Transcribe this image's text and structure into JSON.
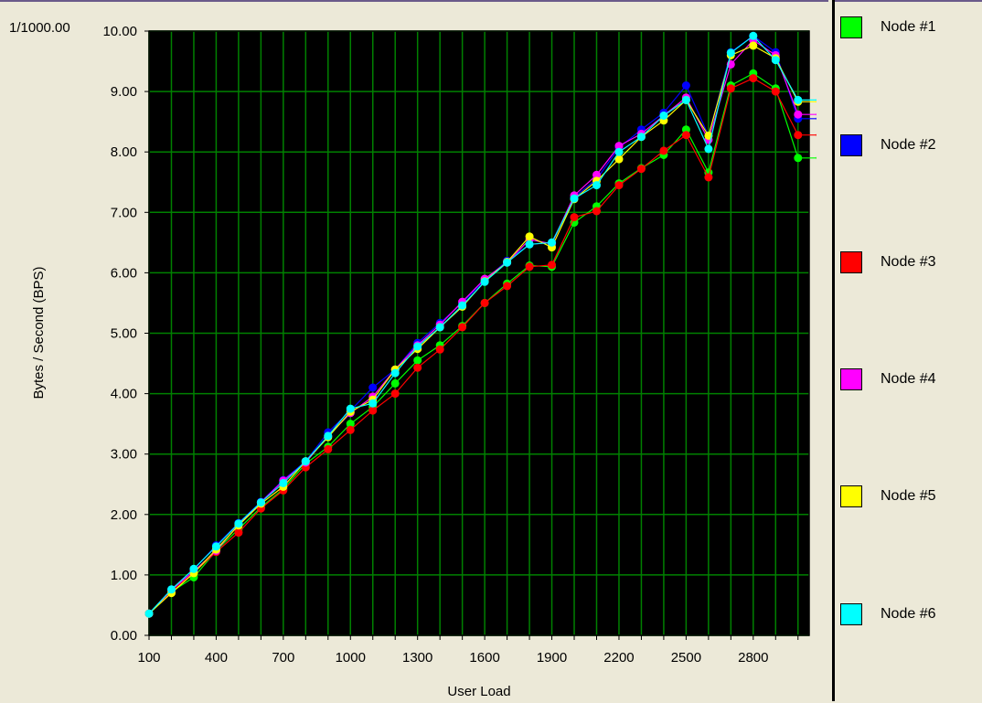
{
  "chart_data": {
    "type": "line",
    "title": "",
    "scale_label": "1/1000.00",
    "ylabel": "Bytes / Second (BPS)",
    "xlabel": "User Load",
    "x_ticks": [
      "100",
      "400",
      "700",
      "1000",
      "1300",
      "1600",
      "1900",
      "2200",
      "2500",
      "2800"
    ],
    "y_ticks": [
      "0.00",
      "1.00",
      "2.00",
      "3.00",
      "4.00",
      "5.00",
      "6.00",
      "7.00",
      "8.00",
      "9.00",
      "10.00"
    ],
    "xlim": [
      100,
      3050
    ],
    "ylim": [
      0,
      10
    ],
    "grid": true,
    "legend_position": "right",
    "x": [
      100,
      200,
      300,
      400,
      500,
      600,
      700,
      800,
      900,
      1000,
      1100,
      1200,
      1300,
      1400,
      1500,
      1600,
      1700,
      1800,
      1900,
      2000,
      2100,
      2200,
      2300,
      2400,
      2500,
      2600,
      2700,
      2800,
      2900,
      3000,
      3100
    ],
    "series": [
      {
        "name": "Node #1",
        "color": "#00ff00",
        "values": [
          0.36,
          0.72,
          0.96,
          1.4,
          1.76,
          2.12,
          2.42,
          2.84,
          3.12,
          3.5,
          3.78,
          4.17,
          4.55,
          4.8,
          5.12,
          5.5,
          5.82,
          6.12,
          6.1,
          6.83,
          7.1,
          7.48,
          7.73,
          7.95,
          8.37,
          7.66,
          9.1,
          9.3,
          9.05,
          7.9,
          7.9
        ]
      },
      {
        "name": "Node #2",
        "color": "#0000ff",
        "values": [
          0.36,
          0.76,
          1.09,
          1.49,
          1.86,
          2.21,
          2.57,
          2.88,
          3.36,
          3.72,
          4.1,
          4.4,
          4.84,
          5.17,
          5.5,
          5.88,
          6.2,
          6.47,
          6.5,
          7.25,
          7.55,
          8.07,
          8.37,
          8.65,
          9.1,
          8.27,
          9.65,
          9.92,
          9.65,
          8.55,
          8.55
        ]
      },
      {
        "name": "Node #3",
        "color": "#ff0000",
        "values": [
          0.36,
          0.72,
          1.04,
          1.38,
          1.7,
          2.1,
          2.4,
          2.78,
          3.08,
          3.4,
          3.72,
          4.0,
          4.43,
          4.73,
          5.1,
          5.5,
          5.78,
          6.1,
          6.13,
          6.92,
          7.02,
          7.45,
          7.72,
          8.02,
          8.28,
          7.58,
          9.05,
          9.22,
          9.0,
          8.28,
          8.28
        ]
      },
      {
        "name": "Node #4",
        "color": "#ff00ff",
        "values": [
          0.36,
          0.75,
          1.06,
          1.4,
          1.83,
          2.2,
          2.56,
          2.86,
          3.3,
          3.68,
          3.95,
          4.4,
          4.8,
          5.14,
          5.52,
          5.9,
          6.17,
          6.55,
          6.48,
          7.28,
          7.62,
          8.1,
          8.3,
          8.6,
          8.9,
          8.2,
          9.45,
          9.85,
          9.6,
          8.62,
          8.62
        ]
      },
      {
        "name": "Node #5",
        "color": "#ffff00",
        "values": [
          0.36,
          0.7,
          1.03,
          1.42,
          1.82,
          2.18,
          2.46,
          2.88,
          3.28,
          3.7,
          3.9,
          4.4,
          4.74,
          5.1,
          5.44,
          5.86,
          6.18,
          6.6,
          6.42,
          7.22,
          7.52,
          7.88,
          8.25,
          8.52,
          8.86,
          8.27,
          9.6,
          9.76,
          9.55,
          8.83,
          8.83
        ]
      },
      {
        "name": "Node #6",
        "color": "#00ffff",
        "values": [
          0.36,
          0.76,
          1.1,
          1.47,
          1.85,
          2.2,
          2.52,
          2.88,
          3.3,
          3.75,
          3.84,
          4.34,
          4.78,
          5.1,
          5.46,
          5.85,
          6.17,
          6.47,
          6.5,
          7.23,
          7.45,
          8.0,
          8.25,
          8.6,
          8.86,
          8.05,
          9.64,
          9.92,
          9.52,
          8.86,
          8.86
        ]
      }
    ]
  },
  "legend": {
    "items": [
      {
        "label": "Node #1",
        "color": "#00ff00"
      },
      {
        "label": "Node #2",
        "color": "#0000ff"
      },
      {
        "label": "Node #3",
        "color": "#ff0000"
      },
      {
        "label": "Node #4",
        "color": "#ff00ff"
      },
      {
        "label": "Node #5",
        "color": "#ffff00"
      },
      {
        "label": "Node #6",
        "color": "#00ffff"
      }
    ]
  }
}
